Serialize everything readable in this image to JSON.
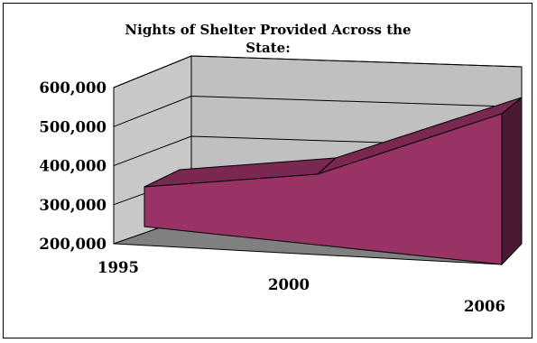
{
  "chart_data": {
    "type": "area",
    "style": "3d",
    "title_lines": [
      "Nights of Shelter Provided Across the",
      "State:"
    ],
    "x": [
      "1995",
      "2000",
      "2006"
    ],
    "series": [
      {
        "values": [
          340000,
          370000,
          540000
        ]
      }
    ],
    "ylim": [
      200000,
      600000
    ],
    "yticks": [
      "200,000",
      "300,000",
      "400,000",
      "500,000",
      "600,000"
    ],
    "grid": true,
    "legend": "none",
    "colors": {
      "area_front": "#993366",
      "area_top": "#7a2852",
      "area_side": "#4a1a33",
      "back_wall": "#c0c0c0",
      "side_wall": "#c8c8c8",
      "floor": "#808080",
      "gridline": "#000000"
    }
  }
}
